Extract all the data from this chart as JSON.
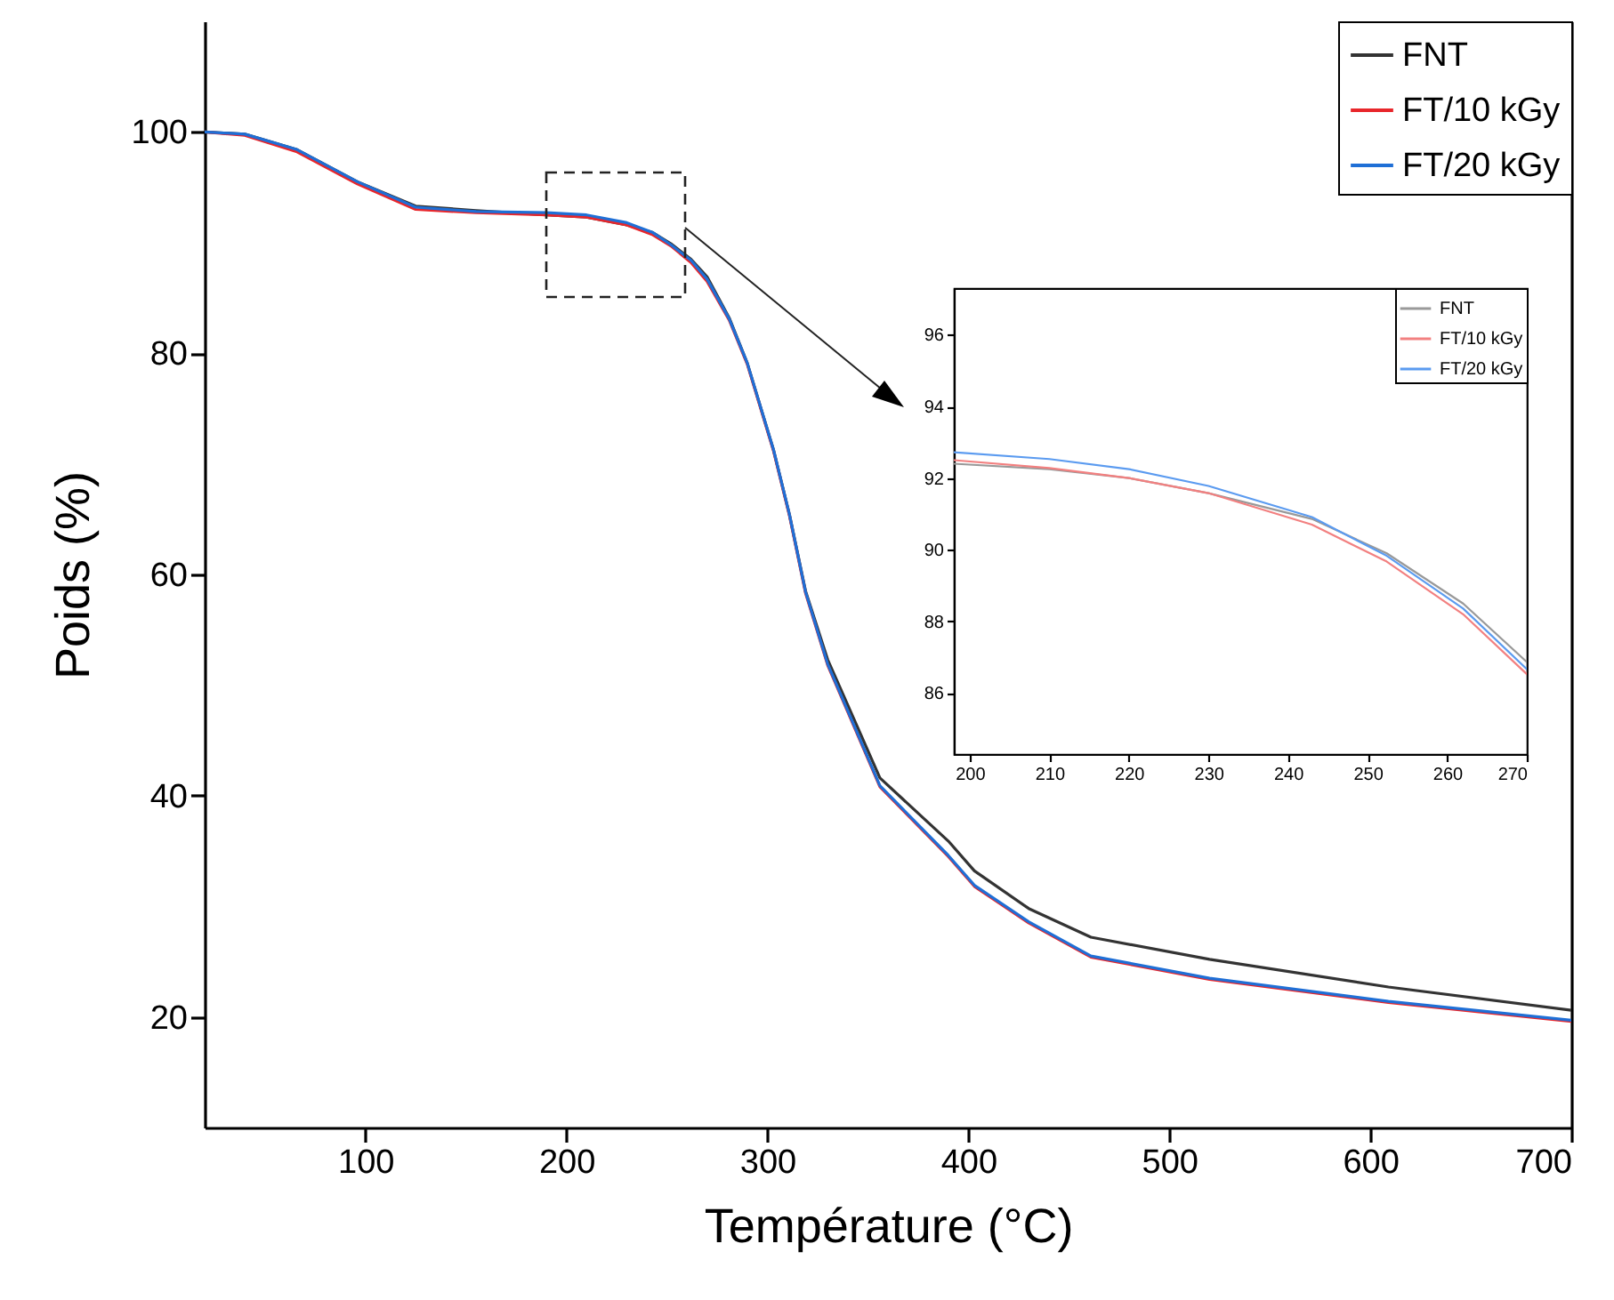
{
  "chart_data": [
    {
      "type": "line",
      "xlabel": "Température (°C)",
      "ylabel": "Poids (%)",
      "xlim": [
        20,
        700
      ],
      "xticks": [
        100,
        200,
        300,
        400,
        500,
        600,
        700
      ],
      "ylim": [
        10,
        110
      ],
      "yticks": [
        20,
        40,
        60,
        80,
        100
      ],
      "grid": false,
      "legend": "top right",
      "line_style": "solid",
      "series": [
        {
          "name": "FNT",
          "color": "#333333",
          "x": [
            20,
            40,
            66,
            96,
            125,
            155,
            190,
            210,
            230,
            243,
            252,
            262,
            270,
            281,
            290,
            303,
            311,
            319,
            330,
            356,
            390,
            403,
            430,
            461,
            520,
            609,
            700
          ],
          "values": [
            100,
            99.8,
            98.4,
            95.5,
            93.3,
            92.9,
            92.5,
            92.3,
            91.6,
            90.9,
            89.9,
            88.5,
            86.9,
            83.2,
            79.1,
            71.3,
            65.4,
            58.5,
            52.3,
            41.6,
            35.9,
            33.2,
            29.8,
            27.2,
            25.2,
            22.7,
            20.6
          ]
        },
        {
          "name": "FT/10 kGy",
          "color": "#e8262b",
          "x": [
            20,
            40,
            66,
            96,
            125,
            155,
            190,
            210,
            230,
            243,
            252,
            262,
            270,
            281,
            290,
            303,
            311,
            319,
            330,
            356,
            390,
            403,
            430,
            461,
            520,
            609,
            700
          ],
          "values": [
            100,
            99.7,
            98.2,
            95.3,
            93.0,
            92.7,
            92.5,
            92.3,
            91.6,
            90.7,
            89.7,
            88.2,
            86.5,
            83.0,
            79.0,
            71.2,
            65.3,
            58.3,
            51.8,
            40.8,
            34.5,
            31.8,
            28.5,
            25.4,
            23.4,
            21.3,
            19.6
          ]
        },
        {
          "name": "FT/20 kGy",
          "color": "#1f6fd6",
          "x": [
            20,
            40,
            66,
            96,
            125,
            155,
            190,
            210,
            230,
            243,
            252,
            262,
            270,
            281,
            290,
            303,
            311,
            319,
            330,
            356,
            390,
            403,
            430,
            461,
            520,
            609,
            700
          ],
          "values": [
            100,
            99.8,
            98.4,
            95.5,
            93.2,
            92.8,
            92.7,
            92.5,
            91.8,
            90.9,
            89.8,
            88.4,
            86.7,
            83.1,
            79.1,
            71.3,
            65.4,
            58.4,
            51.9,
            40.9,
            34.6,
            31.9,
            28.6,
            25.5,
            23.5,
            21.4,
            19.7
          ]
        }
      ]
    },
    {
      "type": "line",
      "xlim": [
        198,
        270
      ],
      "xticks": [
        200,
        210,
        220,
        230,
        240,
        250,
        260,
        270
      ],
      "ylim": [
        84.3,
        97.3
      ],
      "yticks": [
        86,
        88,
        90,
        92,
        94,
        96
      ],
      "grid": false,
      "legend": "top right",
      "line_style": "solid",
      "series": [
        {
          "name": "FNT",
          "color": "#999999",
          "x": [
            198,
            210,
            220,
            230,
            243,
            252.4,
            262,
            270
          ],
          "values": [
            92.4,
            92.25,
            92.0,
            91.58,
            90.86,
            89.9,
            88.5,
            86.87
          ]
        },
        {
          "name": "FT/10 kGy",
          "color": "#f28080",
          "x": [
            198,
            210,
            220,
            230,
            243,
            252.4,
            262,
            270
          ],
          "values": [
            92.5,
            92.28,
            92.0,
            91.58,
            90.7,
            89.67,
            88.2,
            86.53
          ]
        },
        {
          "name": "FT/20 kGy",
          "color": "#5b9bf0",
          "x": [
            198,
            210,
            220,
            230,
            243,
            252.4,
            262,
            270
          ],
          "values": [
            92.72,
            92.53,
            92.25,
            91.78,
            90.91,
            89.83,
            88.36,
            86.67
          ]
        }
      ]
    }
  ]
}
